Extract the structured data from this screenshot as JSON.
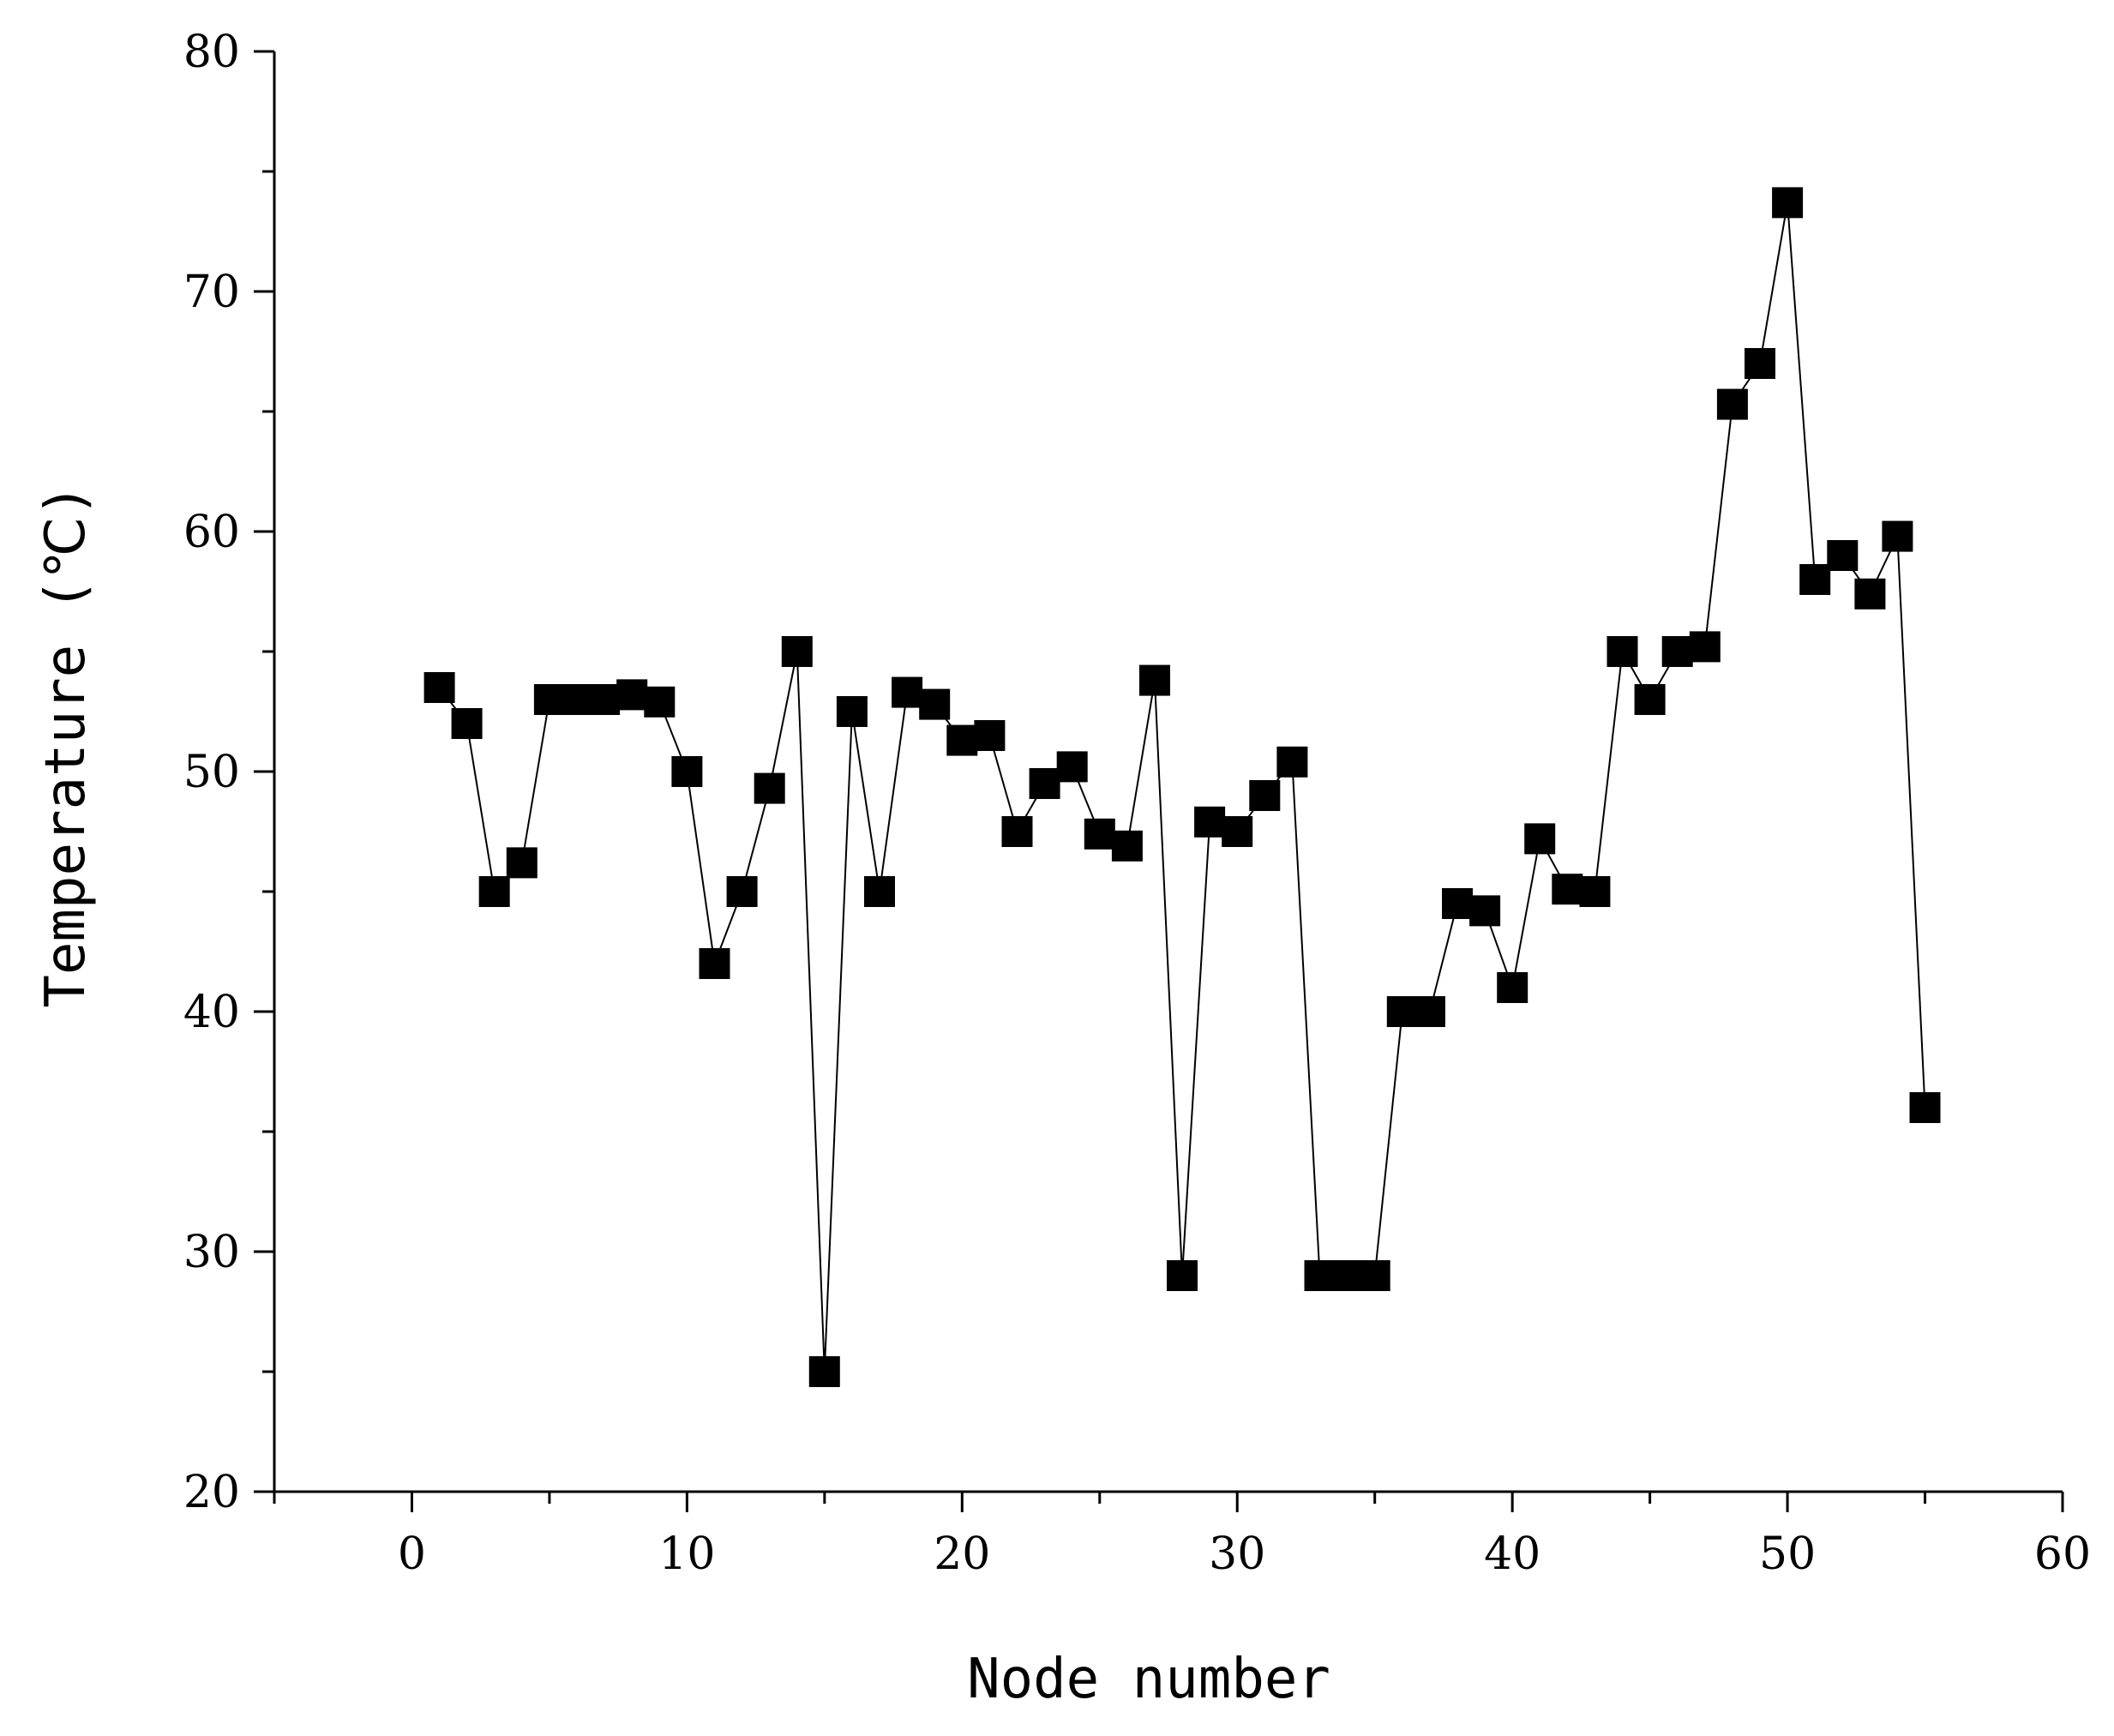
{
  "chart_data": {
    "type": "line",
    "xlabel": "Node number",
    "ylabel": "Temperature (℃)",
    "xlim": [
      -5,
      60
    ],
    "ylim": [
      20,
      80
    ],
    "x_ticks": [
      0,
      10,
      20,
      30,
      40,
      50,
      60
    ],
    "y_ticks": [
      20,
      30,
      40,
      50,
      60,
      70,
      80
    ],
    "marker": "square",
    "color": "#000000",
    "grid": false,
    "series": [
      {
        "x": [
          1,
          2,
          3,
          4,
          5,
          6,
          7,
          8,
          9,
          10,
          11,
          12,
          13,
          14,
          15,
          16,
          17,
          18,
          19,
          20,
          21,
          22,
          23,
          24,
          25,
          26,
          27,
          28,
          29,
          30,
          31,
          32,
          33,
          34,
          35,
          36,
          37,
          38,
          39,
          40,
          41,
          42,
          43,
          44,
          45,
          46,
          47,
          48,
          49,
          50,
          51,
          52,
          53,
          54,
          55
        ],
        "values": [
          53.5,
          52,
          45,
          46.2,
          53,
          53,
          53,
          53.2,
          52.9,
          50,
          42,
          45,
          49.3,
          55,
          25,
          52.5,
          45,
          53.3,
          52.8,
          51.3,
          51.5,
          47.5,
          49.5,
          50.2,
          47.4,
          46.9,
          53.8,
          29,
          47.9,
          47.5,
          49,
          50.4,
          29,
          29,
          29,
          40,
          40,
          44.5,
          44.2,
          41,
          47.2,
          45.1,
          45,
          55,
          53,
          55,
          55.2,
          65.3,
          67,
          73.7,
          58,
          59,
          57.4,
          59.8,
          36
        ]
      }
    ]
  }
}
